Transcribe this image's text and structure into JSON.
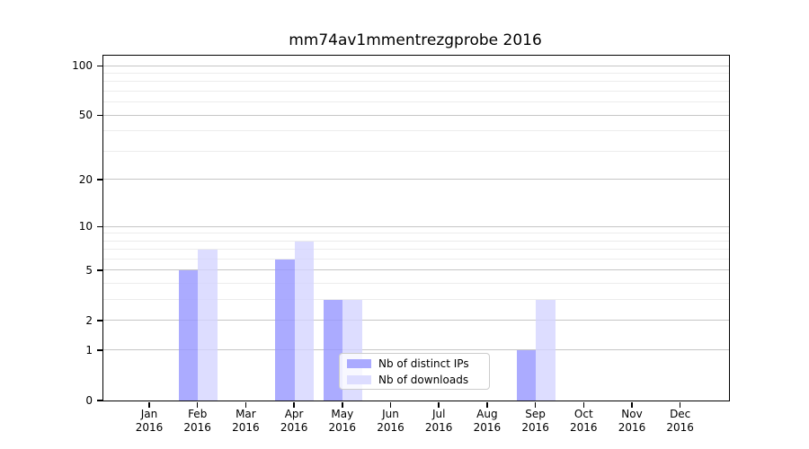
{
  "figure": {
    "title": "mm74av1mmentrezgprobe 2016"
  },
  "chart_data": {
    "type": "bar",
    "title": "mm74av1mmentrezgprobe 2016",
    "x_months": [
      "Jan",
      "Feb",
      "Mar",
      "Apr",
      "May",
      "Jun",
      "Jul",
      "Aug",
      "Sep",
      "Oct",
      "Nov",
      "Dec"
    ],
    "x_year": "2016",
    "series": [
      {
        "name": "Nb of distinct IPs",
        "color": "#aaaaff",
        "values": [
          0,
          5,
          0,
          6,
          3,
          0,
          0,
          0,
          1,
          0,
          0,
          0
        ]
      },
      {
        "name": "Nb of downloads",
        "color": "#ddddff",
        "values": [
          0,
          7,
          0,
          8,
          3,
          0,
          0,
          0,
          3,
          0,
          0,
          0
        ]
      }
    ],
    "y_scale": "log1p",
    "y_major_ticks": [
      0,
      1,
      2,
      5,
      10,
      20,
      50,
      100
    ],
    "y_minor_gridlines": [
      3,
      4,
      6,
      7,
      8,
      9,
      30,
      40,
      60,
      70,
      80,
      90
    ],
    "ylim": [
      0,
      115
    ],
    "grid": true,
    "legend_position": "inside-bottom-center"
  },
  "colors": {
    "distinct_ips": "#aaaaff",
    "downloads": "#ddddff",
    "grid_major": "#c6c6c6",
    "grid_minor": "#ececec",
    "spine": "#000000"
  }
}
